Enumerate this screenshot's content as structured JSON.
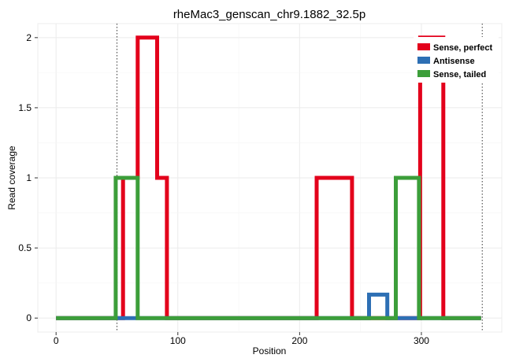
{
  "chart_data": {
    "type": "line",
    "title": "rheMac3_genscan_chr9.1882_32.5p",
    "xlabel": "Position",
    "ylabel": "Read coverage",
    "xlim": [
      -15,
      366
    ],
    "ylim": [
      -0.1,
      2.1
    ],
    "x_ticks": [
      0,
      100,
      200,
      300
    ],
    "y_ticks": [
      0,
      0.5,
      1,
      1.5,
      2
    ],
    "y_tick_labels": [
      "0",
      "0.5",
      "1",
      "1.5",
      "2"
    ],
    "grid": true,
    "vlines": [
      50,
      350
    ],
    "legend_position": "top-right",
    "series": [
      {
        "name": "Sense, perfect",
        "color": "#e3001b",
        "points": [
          [
            0,
            0
          ],
          [
            55,
            0
          ],
          [
            55,
            1
          ],
          [
            67,
            1
          ],
          [
            67,
            2
          ],
          [
            83,
            2
          ],
          [
            83,
            1
          ],
          [
            91,
            1
          ],
          [
            91,
            0
          ],
          [
            214,
            0
          ],
          [
            214,
            1
          ],
          [
            243,
            1
          ],
          [
            243,
            0
          ],
          [
            299,
            0
          ],
          [
            299,
            2
          ],
          [
            318,
            2
          ],
          [
            318,
            0
          ],
          [
            349,
            0
          ]
        ]
      },
      {
        "name": "Antisense",
        "color": "#2d6fb4",
        "points": [
          [
            0,
            0
          ],
          [
            257,
            0
          ],
          [
            257,
            0.167
          ],
          [
            272,
            0.167
          ],
          [
            272,
            0
          ],
          [
            349,
            0
          ]
        ]
      },
      {
        "name": "Sense, tailed",
        "color": "#3c9e3a",
        "points": [
          [
            0,
            0
          ],
          [
            49,
            0
          ],
          [
            49,
            1
          ],
          [
            67,
            1
          ],
          [
            67,
            0
          ],
          [
            279,
            0
          ],
          [
            279,
            1
          ],
          [
            298,
            1
          ],
          [
            298,
            0
          ],
          [
            349,
            0
          ]
        ]
      }
    ]
  }
}
